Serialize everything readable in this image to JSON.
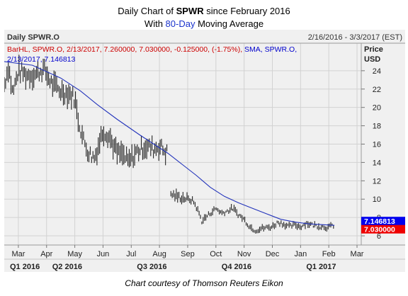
{
  "header": {
    "line1_prefix": "Daily Chart of ",
    "line1_ticker": "SPWR",
    "line1_suffix": " since February 2016",
    "line2_prefix": "With ",
    "line2_highlight": "80-Day",
    "line2_suffix": " Moving Average"
  },
  "panel": {
    "name": "Daily SPWR.O",
    "date_range": "2/16/2016 - 3/3/2017 (EST)",
    "legend_bar": "BarHL, SPWR.O, 2/13/2017, 7.260000, 7.030000, -0.125000, (-1.75%), ",
    "legend_sma_label": "SMA, SPWR.O,",
    "legend_sma_value": "2/13/2017, 7.146813"
  },
  "caption": "Chart courtesy of Thomson Reuters Eikon",
  "chart_data": {
    "type": "bar",
    "subtype": "ohlc-high-low",
    "ylabel": "Price USD",
    "ylim": [
      5,
      27
    ],
    "y_ticks": [
      6,
      8,
      10,
      12,
      14,
      16,
      18,
      20,
      22,
      24
    ],
    "x_month_labels": [
      "Mar",
      "Apr",
      "May",
      "Jun",
      "Jul",
      "Aug",
      "Sep",
      "Oct",
      "Nov",
      "Dec",
      "Jan",
      "Feb",
      "Mar"
    ],
    "x_quarter_labels": [
      "Q1 2016",
      "Q2 2016",
      "Q3 2016",
      "Q4 2016",
      "Q1 2017"
    ],
    "x_start_month": 2.5,
    "x_end_month": 15.1,
    "price_anchors": [
      [
        2.5,
        22.5
      ],
      [
        2.65,
        24.5
      ],
      [
        2.8,
        21.5
      ],
      [
        3.0,
        24.0
      ],
      [
        3.3,
        23.5
      ],
      [
        3.6,
        23.6
      ],
      [
        3.9,
        24.2
      ],
      [
        4.2,
        22.5
      ],
      [
        4.5,
        21.8
      ],
      [
        4.8,
        21.5
      ],
      [
        5.0,
        21.0
      ],
      [
        5.1,
        19.0
      ],
      [
        5.3,
        16.5
      ],
      [
        5.5,
        15.0
      ],
      [
        5.7,
        14.5
      ],
      [
        5.85,
        16.0
      ],
      [
        6.0,
        17.5
      ],
      [
        6.2,
        17.0
      ],
      [
        6.5,
        15.0
      ],
      [
        6.7,
        14.8
      ],
      [
        6.9,
        14.0
      ],
      [
        7.2,
        15.2
      ],
      [
        7.5,
        15.8
      ],
      [
        7.8,
        15.5
      ],
      [
        8.0,
        15.8
      ],
      [
        8.2,
        15.2
      ],
      [
        8.33,
        15.0
      ],
      [
        8.38,
        10.6
      ],
      [
        8.6,
        10.3
      ],
      [
        8.9,
        10.1
      ],
      [
        9.2,
        9.8
      ],
      [
        9.4,
        8.5
      ],
      [
        9.5,
        7.6
      ],
      [
        9.7,
        8.2
      ],
      [
        10.0,
        9.0
      ],
      [
        10.2,
        8.5
      ],
      [
        10.4,
        8.7
      ],
      [
        10.6,
        9.0
      ],
      [
        10.8,
        8.3
      ],
      [
        11.0,
        7.8
      ],
      [
        11.2,
        7.0
      ],
      [
        11.4,
        6.6
      ],
      [
        11.6,
        6.8
      ],
      [
        11.8,
        6.9
      ],
      [
        12.0,
        7.0
      ],
      [
        12.2,
        7.5
      ],
      [
        12.4,
        7.3
      ],
      [
        12.6,
        7.0
      ],
      [
        12.8,
        7.2
      ],
      [
        13.0,
        7.0
      ],
      [
        13.2,
        7.4
      ],
      [
        13.4,
        7.2
      ],
      [
        13.6,
        7.1
      ],
      [
        13.8,
        7.0
      ],
      [
        14.0,
        6.9
      ],
      [
        14.13,
        7.15
      ],
      [
        14.2,
        7.15
      ]
    ],
    "gap_ranges": [
      [
        8.28,
        8.37
      ]
    ],
    "series": [
      {
        "name": "SMA, SPWR.O",
        "style": "line",
        "x": [
          2.5,
          3.5,
          4.5,
          5.2,
          5.8,
          6.5,
          7.3,
          8.3,
          8.8,
          9.3,
          9.8,
          10.3,
          10.8,
          11.3,
          11.8,
          12.3,
          12.8,
          13.3,
          14.2
        ],
        "values": [
          25.0,
          24.6,
          23.2,
          21.8,
          20.3,
          18.7,
          17.0,
          15.0,
          13.8,
          12.6,
          11.3,
          10.3,
          9.6,
          9.0,
          8.4,
          7.8,
          7.5,
          7.3,
          7.146813
        ]
      }
    ],
    "last_bar": {
      "date": "2/13/2017",
      "high": 7.26,
      "low": 7.03,
      "change": -0.125,
      "change_pct": "-1.75%"
    },
    "price_tags": [
      {
        "label": "7.146813",
        "value": 7.146813,
        "color": "#0000ee"
      },
      {
        "label": "7.030000",
        "value": 7.03,
        "color": "#ee0000"
      }
    ],
    "colors": {
      "bars": "#222222",
      "sma": "#2233bb",
      "legend_bar": "#cc0000",
      "legend_sma": "#0000cc",
      "grid": "#d2d2d2",
      "panel": "#f0f0f0"
    },
    "grid": true
  }
}
